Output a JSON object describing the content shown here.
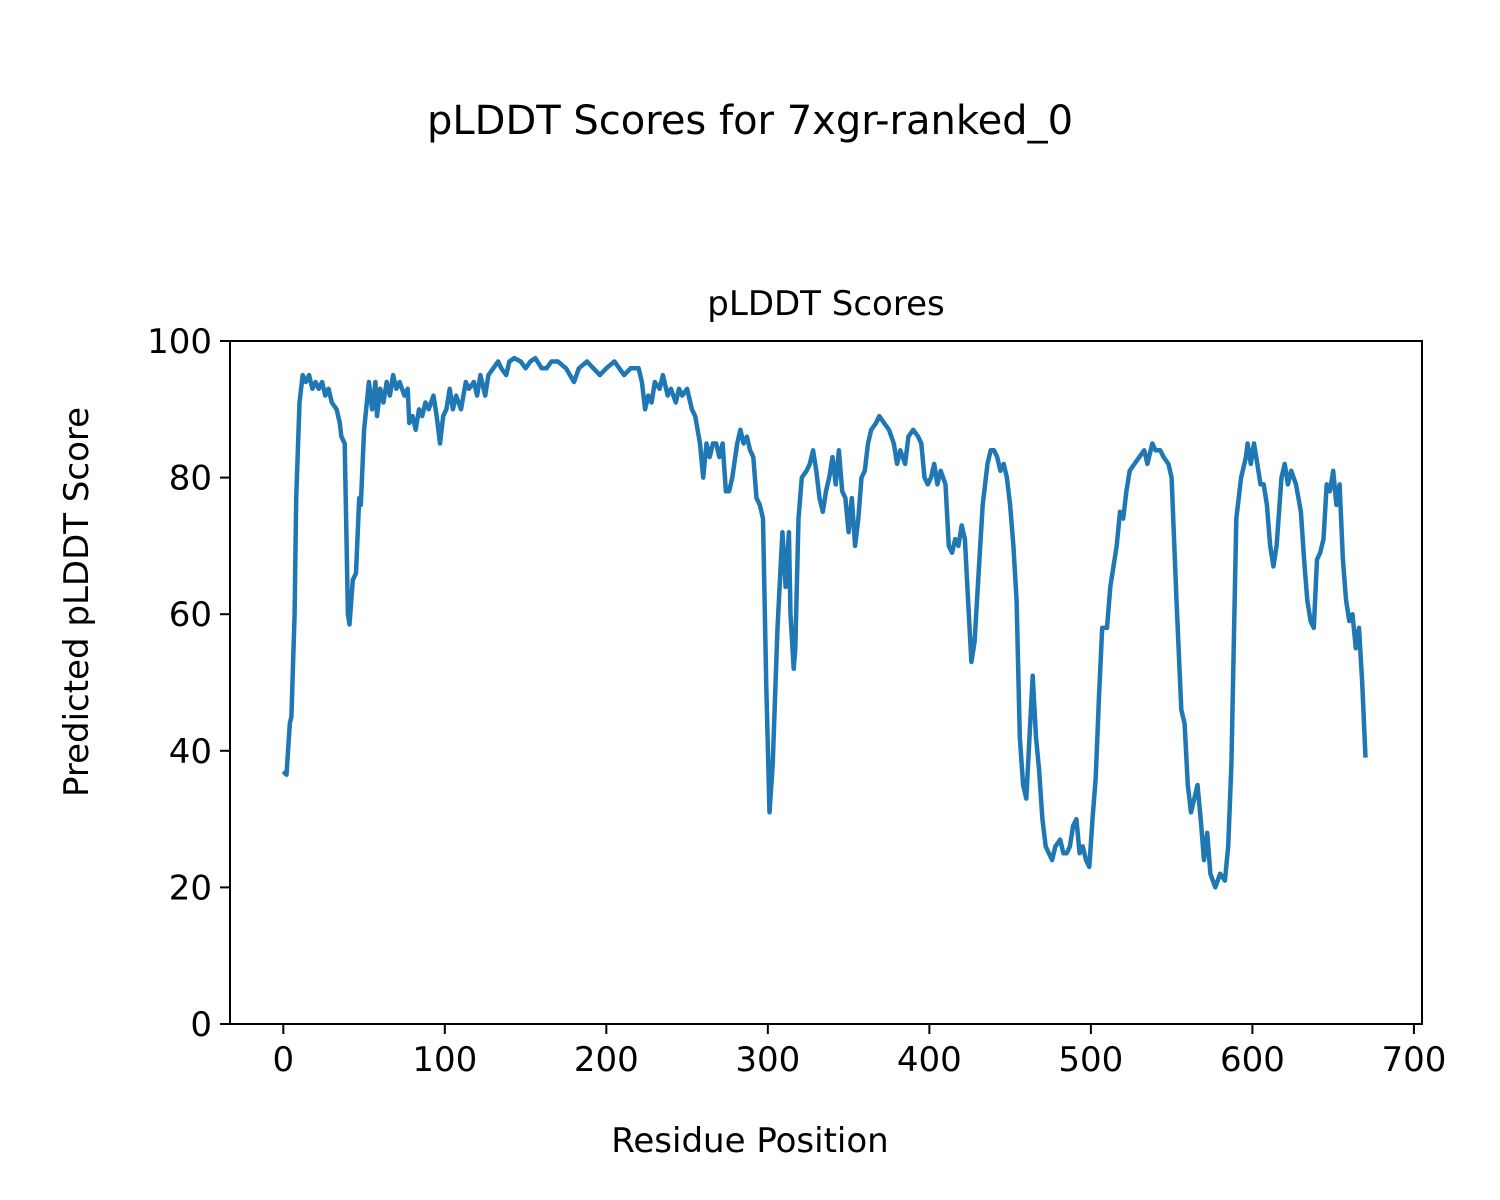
{
  "chart_data": {
    "type": "line",
    "suptitle": "pLDDT Scores for 7xgr-ranked_0",
    "title": "pLDDT Scores",
    "xlabel": "Residue Position",
    "ylabel": "Predicted pLDDT Score",
    "xlim": [
      -33,
      705
    ],
    "ylim": [
      0,
      100
    ],
    "xticks": [
      0,
      100,
      200,
      300,
      400,
      500,
      600,
      700
    ],
    "yticks": [
      0,
      20,
      40,
      60,
      80,
      100
    ],
    "xtick_labels": [
      "0",
      "100",
      "200",
      "300",
      "400",
      "500",
      "600",
      "700"
    ],
    "ytick_labels": [
      "0",
      "20",
      "40",
      "60",
      "80",
      "100"
    ],
    "grid": false,
    "series": [
      {
        "name": "pLDDT",
        "color": "#1f77b4",
        "points": [
          [
            0,
            37
          ],
          [
            2,
            36.5
          ],
          [
            4,
            44
          ],
          [
            5,
            45
          ],
          [
            7,
            60
          ],
          [
            8,
            77
          ],
          [
            10,
            91
          ],
          [
            12,
            95
          ],
          [
            14,
            94
          ],
          [
            16,
            95
          ],
          [
            18,
            93
          ],
          [
            20,
            94
          ],
          [
            22,
            93
          ],
          [
            24,
            94
          ],
          [
            26,
            92
          ],
          [
            28,
            93
          ],
          [
            30,
            91
          ],
          [
            33,
            90
          ],
          [
            35,
            88
          ],
          [
            36,
            86
          ],
          [
            38,
            85
          ],
          [
            40,
            60
          ],
          [
            41,
            58.5
          ],
          [
            43,
            65
          ],
          [
            45,
            66
          ],
          [
            47,
            77
          ],
          [
            48,
            76
          ],
          [
            50,
            87
          ],
          [
            53,
            94
          ],
          [
            55,
            90
          ],
          [
            57,
            94
          ],
          [
            58,
            89
          ],
          [
            60,
            93
          ],
          [
            62,
            91
          ],
          [
            64,
            94
          ],
          [
            66,
            92
          ],
          [
            68,
            95
          ],
          [
            70,
            93
          ],
          [
            72,
            94
          ],
          [
            75,
            92
          ],
          [
            77,
            93
          ],
          [
            78,
            88
          ],
          [
            80,
            89
          ],
          [
            82,
            87
          ],
          [
            84,
            90
          ],
          [
            86,
            89
          ],
          [
            88,
            91
          ],
          [
            90,
            90
          ],
          [
            93,
            92
          ],
          [
            95,
            89
          ],
          [
            97,
            85
          ],
          [
            99,
            89
          ],
          [
            101,
            90
          ],
          [
            103,
            93
          ],
          [
            105,
            90
          ],
          [
            107,
            92
          ],
          [
            110,
            90
          ],
          [
            113,
            94
          ],
          [
            115,
            93
          ],
          [
            118,
            94
          ],
          [
            120,
            92
          ],
          [
            122,
            95
          ],
          [
            125,
            92
          ],
          [
            127,
            95
          ],
          [
            130,
            96
          ],
          [
            133,
            97
          ],
          [
            135,
            96
          ],
          [
            138,
            95
          ],
          [
            140,
            97
          ],
          [
            143,
            97.5
          ],
          [
            147,
            97
          ],
          [
            150,
            96
          ],
          [
            153,
            97
          ],
          [
            156,
            97.5
          ],
          [
            160,
            96
          ],
          [
            163,
            96
          ],
          [
            166,
            97
          ],
          [
            170,
            97
          ],
          [
            175,
            96
          ],
          [
            180,
            94
          ],
          [
            183,
            96
          ],
          [
            188,
            97
          ],
          [
            192,
            96
          ],
          [
            196,
            95
          ],
          [
            200,
            96
          ],
          [
            205,
            97
          ],
          [
            208,
            96
          ],
          [
            211,
            95
          ],
          [
            215,
            96
          ],
          [
            220,
            96
          ],
          [
            222,
            94
          ],
          [
            224,
            90
          ],
          [
            226,
            92
          ],
          [
            228,
            91
          ],
          [
            230,
            94
          ],
          [
            233,
            93
          ],
          [
            235,
            95
          ],
          [
            238,
            92
          ],
          [
            240,
            93
          ],
          [
            243,
            91
          ],
          [
            245,
            93
          ],
          [
            247,
            92
          ],
          [
            250,
            93
          ],
          [
            253,
            90
          ],
          [
            255,
            89
          ],
          [
            258,
            85
          ],
          [
            260,
            80
          ],
          [
            262,
            85
          ],
          [
            264,
            83
          ],
          [
            266,
            85
          ],
          [
            268,
            85
          ],
          [
            270,
            83
          ],
          [
            272,
            85
          ],
          [
            274,
            78
          ],
          [
            276,
            78
          ],
          [
            278,
            80
          ],
          [
            281,
            85
          ],
          [
            283,
            87
          ],
          [
            285,
            85
          ],
          [
            287,
            86
          ],
          [
            289,
            84
          ],
          [
            291,
            83
          ],
          [
            293,
            77
          ],
          [
            295,
            76
          ],
          [
            297,
            74
          ],
          [
            299,
            50
          ],
          [
            301,
            31
          ],
          [
            303,
            38
          ],
          [
            306,
            58
          ],
          [
            309,
            72
          ],
          [
            311,
            64
          ],
          [
            313,
            72
          ],
          [
            314,
            60
          ],
          [
            316,
            52
          ],
          [
            317,
            55
          ],
          [
            319,
            74
          ],
          [
            321,
            80
          ],
          [
            324,
            81
          ],
          [
            326,
            82
          ],
          [
            328,
            84
          ],
          [
            330,
            81
          ],
          [
            332,
            77
          ],
          [
            334,
            75
          ],
          [
            336,
            78
          ],
          [
            338,
            80
          ],
          [
            340,
            83
          ],
          [
            342,
            79
          ],
          [
            344,
            84
          ],
          [
            346,
            78
          ],
          [
            348,
            77
          ],
          [
            350,
            72
          ],
          [
            352,
            77
          ],
          [
            354,
            70
          ],
          [
            356,
            74
          ],
          [
            358,
            80
          ],
          [
            360,
            81
          ],
          [
            362,
            85
          ],
          [
            364,
            87
          ],
          [
            367,
            88
          ],
          [
            369,
            89
          ],
          [
            372,
            88
          ],
          [
            375,
            87
          ],
          [
            378,
            85
          ],
          [
            380,
            82
          ],
          [
            382,
            84
          ],
          [
            385,
            82
          ],
          [
            387,
            86
          ],
          [
            390,
            87
          ],
          [
            393,
            86
          ],
          [
            395,
            85
          ],
          [
            397,
            80
          ],
          [
            399,
            79
          ],
          [
            401,
            80
          ],
          [
            403,
            82
          ],
          [
            405,
            79
          ],
          [
            407,
            81
          ],
          [
            410,
            79
          ],
          [
            412,
            70
          ],
          [
            414,
            69
          ],
          [
            416,
            71
          ],
          [
            418,
            70
          ],
          [
            420,
            73
          ],
          [
            422,
            71
          ],
          [
            424,
            62
          ],
          [
            426,
            53
          ],
          [
            428,
            56
          ],
          [
            431,
            68
          ],
          [
            433,
            76
          ],
          [
            436,
            82
          ],
          [
            438,
            84
          ],
          [
            440,
            84
          ],
          [
            442,
            83
          ],
          [
            444,
            81
          ],
          [
            446,
            82
          ],
          [
            448,
            80
          ],
          [
            450,
            76
          ],
          [
            452,
            70
          ],
          [
            454,
            62
          ],
          [
            456,
            42
          ],
          [
            458,
            35
          ],
          [
            460,
            33
          ],
          [
            462,
            42
          ],
          [
            464,
            51
          ],
          [
            466,
            42
          ],
          [
            468,
            37
          ],
          [
            470,
            30
          ],
          [
            472,
            26
          ],
          [
            474,
            25
          ],
          [
            476,
            24
          ],
          [
            478,
            26
          ],
          [
            481,
            27
          ],
          [
            483,
            25
          ],
          [
            485,
            25
          ],
          [
            487,
            26
          ],
          [
            489,
            29
          ],
          [
            491,
            30
          ],
          [
            493,
            25
          ],
          [
            495,
            26
          ],
          [
            497,
            24
          ],
          [
            499,
            23
          ],
          [
            501,
            30
          ],
          [
            503,
            36
          ],
          [
            505,
            48
          ],
          [
            507,
            58
          ],
          [
            510,
            58
          ],
          [
            512,
            64
          ],
          [
            514,
            67
          ],
          [
            516,
            70
          ],
          [
            518,
            75
          ],
          [
            520,
            74
          ],
          [
            522,
            78
          ],
          [
            524,
            81
          ],
          [
            527,
            82
          ],
          [
            530,
            83
          ],
          [
            533,
            84
          ],
          [
            535,
            82
          ],
          [
            538,
            85
          ],
          [
            540,
            84
          ],
          [
            543,
            84
          ],
          [
            545,
            83
          ],
          [
            548,
            82
          ],
          [
            550,
            80
          ],
          [
            553,
            62
          ],
          [
            556,
            46
          ],
          [
            558,
            44
          ],
          [
            560,
            35
          ],
          [
            562,
            31
          ],
          [
            564,
            33
          ],
          [
            566,
            35
          ],
          [
            568,
            30
          ],
          [
            570,
            24
          ],
          [
            572,
            28
          ],
          [
            574,
            22
          ],
          [
            577,
            20
          ],
          [
            580,
            22
          ],
          [
            583,
            21
          ],
          [
            585,
            26
          ],
          [
            587,
            38
          ],
          [
            590,
            74
          ],
          [
            593,
            80
          ],
          [
            596,
            83
          ],
          [
            597,
            85
          ],
          [
            599,
            82
          ],
          [
            601,
            85
          ],
          [
            603,
            82
          ],
          [
            605,
            79
          ],
          [
            607,
            79
          ],
          [
            609,
            76
          ],
          [
            611,
            70
          ],
          [
            613,
            67
          ],
          [
            615,
            70
          ],
          [
            618,
            80
          ],
          [
            620,
            82
          ],
          [
            622,
            79
          ],
          [
            624,
            81
          ],
          [
            627,
            79
          ],
          [
            630,
            75
          ],
          [
            632,
            68
          ],
          [
            634,
            62
          ],
          [
            636,
            59
          ],
          [
            638,
            58
          ],
          [
            640,
            68
          ],
          [
            642,
            69
          ],
          [
            644,
            71
          ],
          [
            646,
            79
          ],
          [
            648,
            78
          ],
          [
            650,
            81
          ],
          [
            652,
            76
          ],
          [
            654,
            79
          ],
          [
            656,
            68
          ],
          [
            658,
            62
          ],
          [
            660,
            59
          ],
          [
            662,
            60
          ],
          [
            664,
            55
          ],
          [
            666,
            58
          ],
          [
            668,
            50
          ],
          [
            670,
            39
          ]
        ]
      }
    ]
  }
}
